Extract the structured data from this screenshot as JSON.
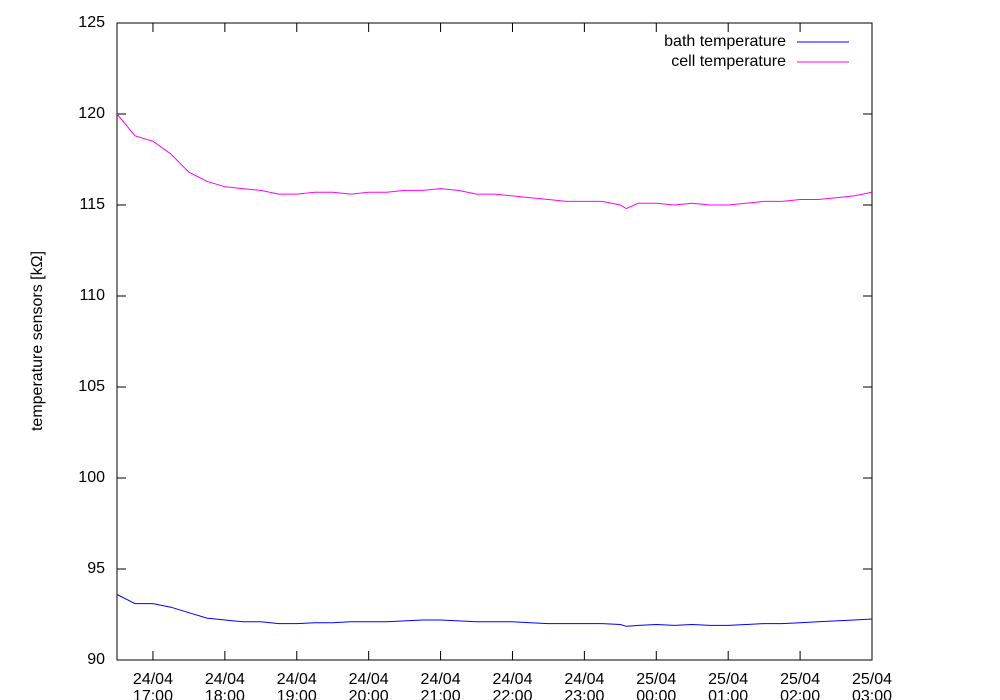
{
  "chart_data": {
    "type": "line",
    "y_label": "temperature sensors [kΩ]",
    "x": [
      "24/04 16:30",
      "24/04 16:45",
      "24/04 17:00",
      "24/04 17:15",
      "24/04 17:30",
      "24/04 17:45",
      "24/04 18:00",
      "24/04 18:15",
      "24/04 18:30",
      "24/04 18:45",
      "24/04 19:00",
      "24/04 19:15",
      "24/04 19:30",
      "24/04 19:45",
      "24/04 20:00",
      "24/04 20:15",
      "24/04 20:30",
      "24/04 20:45",
      "24/04 21:00",
      "24/04 21:15",
      "24/04 21:30",
      "24/04 21:45",
      "24/04 22:00",
      "24/04 22:15",
      "24/04 22:30",
      "24/04 22:45",
      "24/04 23:00",
      "24/04 23:15",
      "24/04 23:30",
      "24/04 23:35",
      "24/04 23:45",
      "25/04 00:00",
      "25/04 00:15",
      "25/04 00:30",
      "25/04 00:45",
      "25/04 01:00",
      "25/04 01:15",
      "25/04 01:30",
      "25/04 01:45",
      "25/04 02:00",
      "25/04 02:15",
      "25/04 02:30",
      "25/04 02:45",
      "25/04 03:00"
    ],
    "series": [
      {
        "name": "bath temperature",
        "color": "#0000ff",
        "values": [
          93.6,
          93.1,
          93.1,
          92.9,
          92.6,
          92.3,
          92.2,
          92.1,
          92.1,
          92.0,
          92.0,
          92.05,
          92.05,
          92.1,
          92.1,
          92.1,
          92.15,
          92.2,
          92.2,
          92.15,
          92.1,
          92.1,
          92.1,
          92.05,
          92.0,
          92.0,
          92.0,
          92.0,
          91.95,
          91.85,
          91.9,
          91.95,
          91.9,
          91.95,
          91.9,
          91.9,
          91.95,
          92.0,
          92.0,
          92.05,
          92.1,
          92.15,
          92.2,
          92.25
        ]
      },
      {
        "name": "cell temperature",
        "color": "#ff00ff",
        "values": [
          120.0,
          118.8,
          118.5,
          117.8,
          116.8,
          116.3,
          116.0,
          115.9,
          115.8,
          115.6,
          115.6,
          115.7,
          115.7,
          115.6,
          115.7,
          115.7,
          115.8,
          115.8,
          115.9,
          115.8,
          115.6,
          115.6,
          115.5,
          115.4,
          115.3,
          115.2,
          115.2,
          115.2,
          115.0,
          114.8,
          115.1,
          115.1,
          115.0,
          115.1,
          115.0,
          115.0,
          115.1,
          115.2,
          115.2,
          115.3,
          115.3,
          115.4,
          115.5,
          115.7
        ]
      }
    ],
    "xlim": [
      "24/04 16:30",
      "25/04 03:00"
    ],
    "xticks": [
      "24/04 17:00",
      "24/04 18:00",
      "24/04 19:00",
      "24/04 20:00",
      "24/04 21:00",
      "24/04 22:00",
      "24/04 23:00",
      "25/04 00:00",
      "25/04 01:00",
      "25/04 02:00",
      "25/04 03:00"
    ],
    "ylim": [
      90,
      125
    ],
    "yticks": [
      90,
      95,
      100,
      105,
      110,
      115,
      120,
      125
    ],
    "legend": "upper right"
  }
}
